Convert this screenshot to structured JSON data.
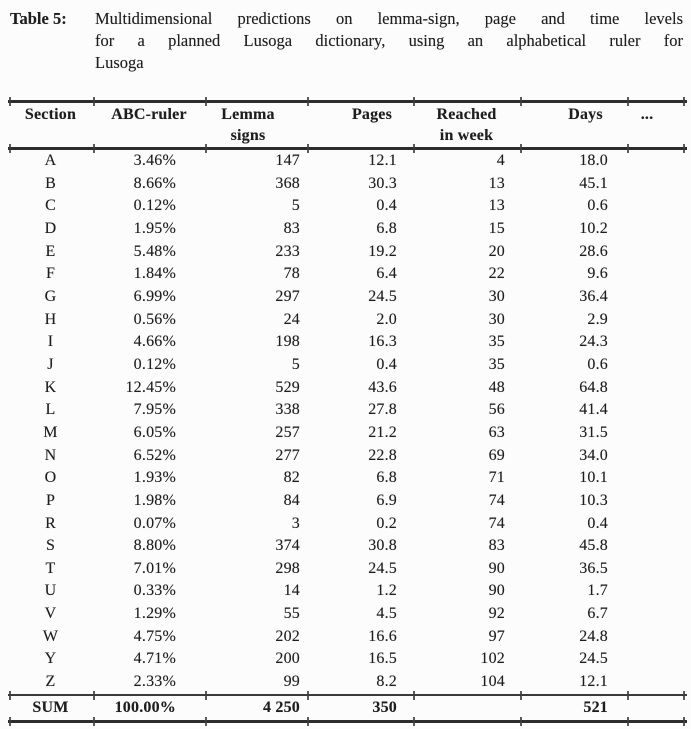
{
  "title": {
    "label": "Table 5:",
    "lines": [
      "Multidimensional predictions on lemma-sign, page and time levels",
      "for a planned Lusoga dictionary, using an alphabetical ruler for",
      "Lusoga"
    ]
  },
  "table": {
    "columns": [
      {
        "line1": "Section",
        "line2": ""
      },
      {
        "line1": "ABC-ruler",
        "line2": ""
      },
      {
        "line1": "Lemma",
        "line2": "signs"
      },
      {
        "line1": "Pages",
        "line2": ""
      },
      {
        "line1": "Reached",
        "line2": "in week"
      },
      {
        "line1": "Days",
        "line2": ""
      },
      {
        "line1": "...",
        "line2": ""
      }
    ],
    "rows": [
      {
        "section": "A",
        "abc": "3.46%",
        "lemma": "147",
        "pages": "12.1",
        "week": "4",
        "days": "18.0",
        "extra": ""
      },
      {
        "section": "B",
        "abc": "8.66%",
        "lemma": "368",
        "pages": "30.3",
        "week": "13",
        "days": "45.1",
        "extra": ""
      },
      {
        "section": "C",
        "abc": "0.12%",
        "lemma": "5",
        "pages": "0.4",
        "week": "13",
        "days": "0.6",
        "extra": ""
      },
      {
        "section": "D",
        "abc": "1.95%",
        "lemma": "83",
        "pages": "6.8",
        "week": "15",
        "days": "10.2",
        "extra": ""
      },
      {
        "section": "E",
        "abc": "5.48%",
        "lemma": "233",
        "pages": "19.2",
        "week": "20",
        "days": "28.6",
        "extra": ""
      },
      {
        "section": "F",
        "abc": "1.84%",
        "lemma": "78",
        "pages": "6.4",
        "week": "22",
        "days": "9.6",
        "extra": ""
      },
      {
        "section": "G",
        "abc": "6.99%",
        "lemma": "297",
        "pages": "24.5",
        "week": "30",
        "days": "36.4",
        "extra": ""
      },
      {
        "section": "H",
        "abc": "0.56%",
        "lemma": "24",
        "pages": "2.0",
        "week": "30",
        "days": "2.9",
        "extra": ""
      },
      {
        "section": "I",
        "abc": "4.66%",
        "lemma": "198",
        "pages": "16.3",
        "week": "35",
        "days": "24.3",
        "extra": ""
      },
      {
        "section": "J",
        "abc": "0.12%",
        "lemma": "5",
        "pages": "0.4",
        "week": "35",
        "days": "0.6",
        "extra": ""
      },
      {
        "section": "K",
        "abc": "12.45%",
        "lemma": "529",
        "pages": "43.6",
        "week": "48",
        "days": "64.8",
        "extra": ""
      },
      {
        "section": "L",
        "abc": "7.95%",
        "lemma": "338",
        "pages": "27.8",
        "week": "56",
        "days": "41.4",
        "extra": ""
      },
      {
        "section": "M",
        "abc": "6.05%",
        "lemma": "257",
        "pages": "21.2",
        "week": "63",
        "days": "31.5",
        "extra": ""
      },
      {
        "section": "N",
        "abc": "6.52%",
        "lemma": "277",
        "pages": "22.8",
        "week": "69",
        "days": "34.0",
        "extra": ""
      },
      {
        "section": "O",
        "abc": "1.93%",
        "lemma": "82",
        "pages": "6.8",
        "week": "71",
        "days": "10.1",
        "extra": ""
      },
      {
        "section": "P",
        "abc": "1.98%",
        "lemma": "84",
        "pages": "6.9",
        "week": "74",
        "days": "10.3",
        "extra": ""
      },
      {
        "section": "R",
        "abc": "0.07%",
        "lemma": "3",
        "pages": "0.2",
        "week": "74",
        "days": "0.4",
        "extra": ""
      },
      {
        "section": "S",
        "abc": "8.80%",
        "lemma": "374",
        "pages": "30.8",
        "week": "83",
        "days": "45.8",
        "extra": ""
      },
      {
        "section": "T",
        "abc": "7.01%",
        "lemma": "298",
        "pages": "24.5",
        "week": "90",
        "days": "36.5",
        "extra": ""
      },
      {
        "section": "U",
        "abc": "0.33%",
        "lemma": "14",
        "pages": "1.2",
        "week": "90",
        "days": "1.7",
        "extra": ""
      },
      {
        "section": "V",
        "abc": "1.29%",
        "lemma": "55",
        "pages": "4.5",
        "week": "92",
        "days": "6.7",
        "extra": ""
      },
      {
        "section": "W",
        "abc": "4.75%",
        "lemma": "202",
        "pages": "16.6",
        "week": "97",
        "days": "24.8",
        "extra": ""
      },
      {
        "section": "Y",
        "abc": "4.71%",
        "lemma": "200",
        "pages": "16.5",
        "week": "102",
        "days": "24.5",
        "extra": ""
      },
      {
        "section": "Z",
        "abc": "2.33%",
        "lemma": "99",
        "pages": "8.2",
        "week": "104",
        "days": "12.1",
        "extra": ""
      }
    ],
    "sum_row": {
      "section": "SUM",
      "abc": "100.00%",
      "lemma": "4 250",
      "pages": "350",
      "week": "",
      "days": "521",
      "extra": ""
    }
  }
}
